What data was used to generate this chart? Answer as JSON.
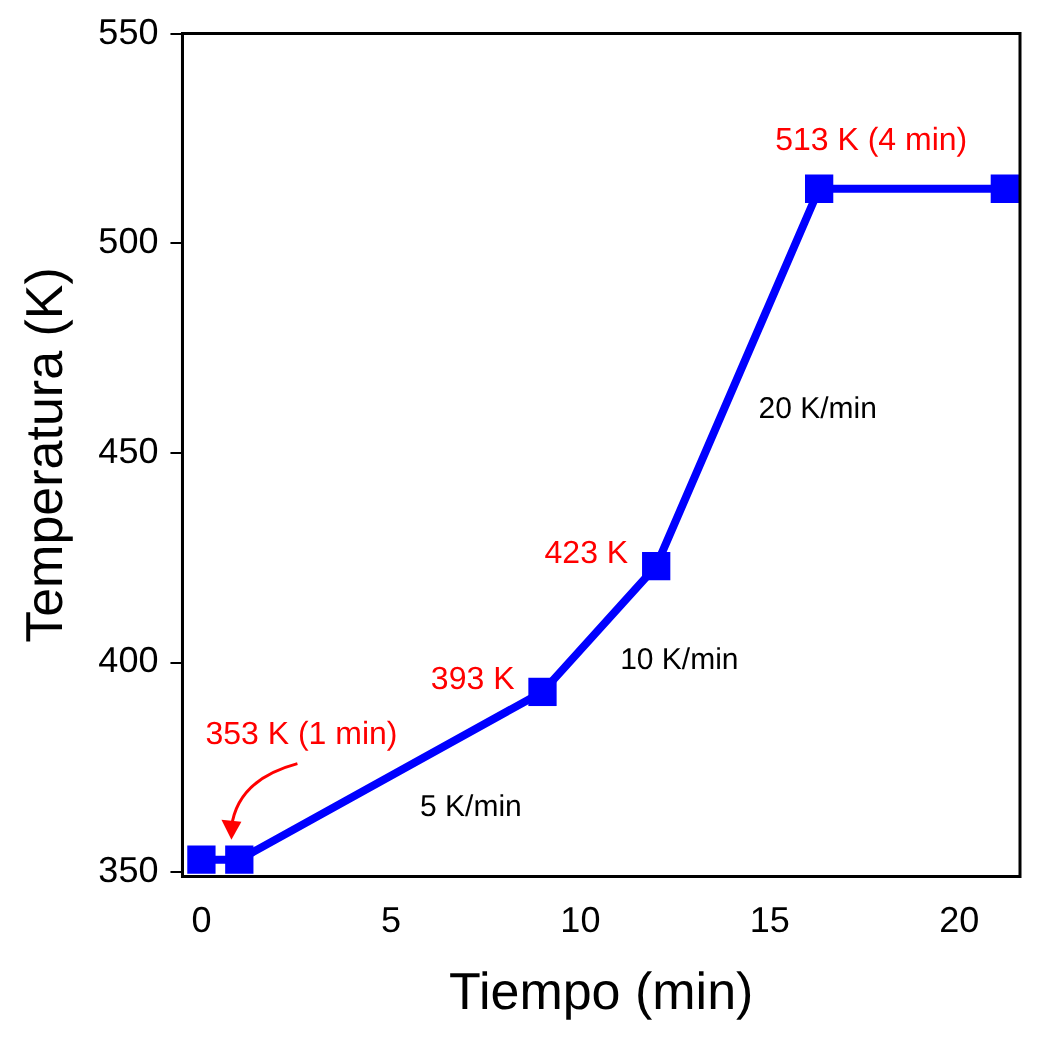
{
  "chart_data": {
    "type": "line",
    "xlabel": "Tiempo (min)",
    "ylabel": "Temperatura (K)",
    "x": [
      0,
      1,
      9,
      12,
      16.3,
      21.2
    ],
    "values": [
      353,
      353,
      393,
      423,
      513,
      513
    ],
    "value_labels": [
      "353 K (1 min)",
      null,
      "393 K",
      "423 K",
      "513 K (4 min)",
      null
    ],
    "color": "#0000ff",
    "marker": "square",
    "line_style": "solid",
    "grid": false,
    "legend": false,
    "xlim": [
      -0.5,
      21.6
    ],
    "xticks": [
      0,
      5,
      10,
      15,
      20
    ],
    "ylim": [
      349,
      550
    ],
    "yticks": [
      350,
      400,
      450,
      500,
      550
    ],
    "annotations": [
      "5 K/min",
      "10 K/min",
      "20 K/min"
    ]
  }
}
